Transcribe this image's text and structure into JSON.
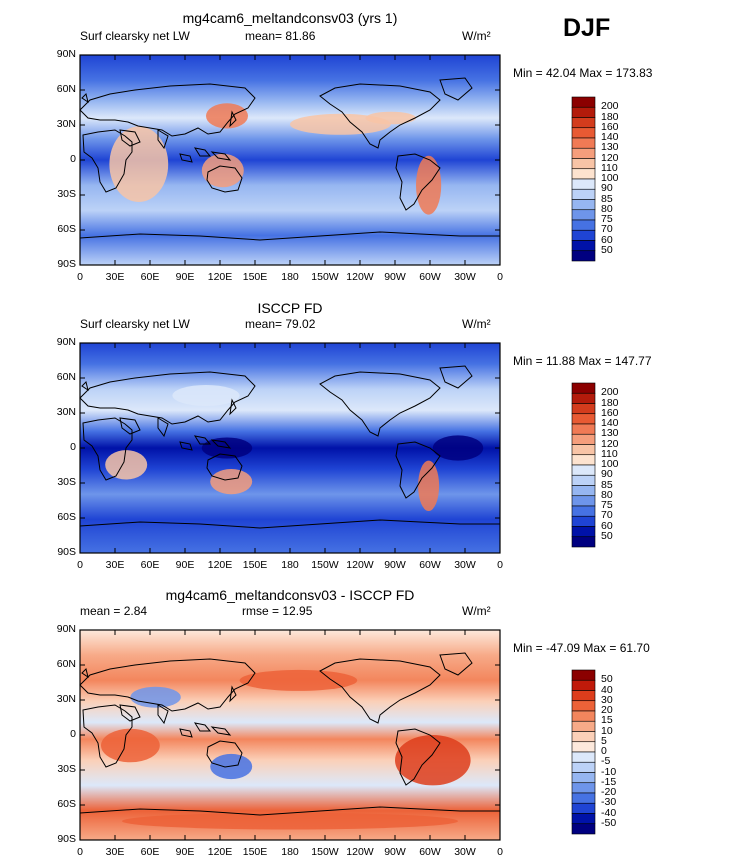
{
  "season": "DJF",
  "panels": [
    {
      "title": "mg4cam6_meltandconsv03 (yrs 1)",
      "left_label": "Surf clearsky net LW",
      "stat1": "mean=  81.86",
      "stat2": "",
      "units": "W/m²",
      "min_max": "Min =  42.04 Max = 173.83",
      "colorbar_labels": [
        "200",
        "180",
        "160",
        "140",
        "130",
        "120",
        "110",
        "100",
        "90",
        "85",
        "80",
        "75",
        "70",
        "60",
        "50"
      ]
    },
    {
      "title": "ISCCP FD",
      "left_label": "Surf clearsky net LW",
      "stat1": "mean=  79.02",
      "stat2": "",
      "units": "W/m²",
      "min_max": "Min =  11.88 Max = 147.77",
      "colorbar_labels": [
        "200",
        "180",
        "160",
        "140",
        "130",
        "120",
        "110",
        "100",
        "90",
        "85",
        "80",
        "75",
        "70",
        "60",
        "50"
      ]
    },
    {
      "title": "mg4cam6_meltandconsv03 - ISCCP FD",
      "left_label": "mean =   2.84",
      "stat1": "rmse =  12.95",
      "stat2": "",
      "units": "W/m²",
      "min_max": "Min = -47.09 Max =  61.70",
      "colorbar_labels": [
        "50",
        "40",
        "30",
        "20",
        "15",
        "10",
        "5",
        "0",
        "-5",
        "-10",
        "-15",
        "-20",
        "-30",
        "-40",
        "-50"
      ]
    }
  ],
  "lat_ticks": [
    "90N",
    "60N",
    "30N",
    "0",
    "30S",
    "60S",
    "90S"
  ],
  "lon_ticks": [
    "0",
    "30E",
    "60E",
    "90E",
    "120E",
    "150E",
    "180",
    "150W",
    "120W",
    "90W",
    "60W",
    "30W",
    "0"
  ],
  "colors": {
    "abs_scale": [
      "#8b0000",
      "#b31b0b",
      "#d33c1d",
      "#e85a33",
      "#f07a55",
      "#f59e7c",
      "#f8c4a6",
      "#fde3cf",
      "#dce8fa",
      "#bcd2f7",
      "#96b6f1",
      "#6e95ea",
      "#4672e3",
      "#1f44d4",
      "#0012a8",
      "#000080"
    ],
    "diff_scale": [
      "#8b0000",
      "#c01a0a",
      "#dd3d1c",
      "#ec6238",
      "#f3865d",
      "#f7aa88",
      "#fbd0b8",
      "#fde9dc",
      "#dce8fa",
      "#bcd2f7",
      "#96b6f1",
      "#6e95ea",
      "#4672e3",
      "#1f44d4",
      "#0012a8",
      "#000080"
    ]
  }
}
